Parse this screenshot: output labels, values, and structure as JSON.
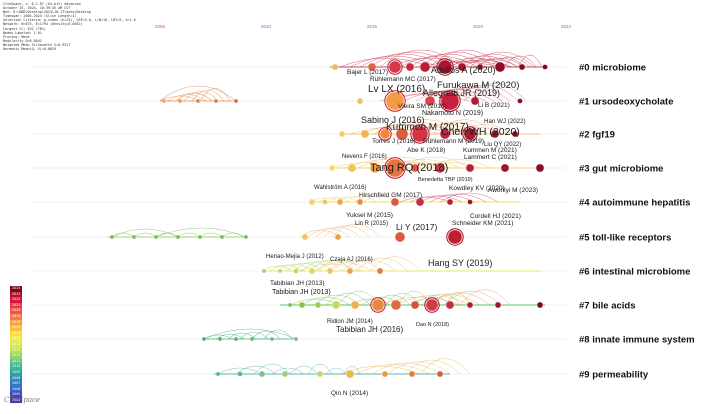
{
  "metadata_lines": [
    "CiteSpace, v. 6.2.R7 (64-bit) Advanced",
    "October 25, 2024, 10:39:45 AM CST",
    "WoS: D:\\BDD\\Desktop\\2024\\10.17\\data\\Desktop",
    "Timespan: 2004-2024 (Slice Length=1)",
    "Selection Criteria: g-index (k=25), LRF=3.0, L/N=10, LBY=5, e=1.0",
    "Network: N=675, E=1794 (Density=0.0052)",
    "Largest CC: 532 (78%)",
    "Nodes Labeled: 1.0%",
    "Pruning: None",
    "Modularity Q=0.8042",
    "Weighted Mean Silhouette S=0.9317",
    "Harmonic Mean(Q, S)=0.8629"
  ],
  "timeline_years": [
    "2005",
    "2010",
    "2015",
    "2020",
    "2024"
  ],
  "timeline_colors": [
    "#d63cd6",
    "#c23be0",
    "#c83fd0",
    "#cc44cc",
    "#c23be0"
  ],
  "clusters": [
    {
      "label": "#0 microbiome"
    },
    {
      "label": "#1 ursodeoxycholate"
    },
    {
      "label": "#2 fgf19"
    },
    {
      "label": "#3 gut microbiome"
    },
    {
      "label": "#4 autoimmune hepatitis"
    },
    {
      "label": "#5 toll-like receptors"
    },
    {
      "label": "#6 intestinal microbiome"
    },
    {
      "label": "#7 bile acids"
    },
    {
      "label": "#8 innate immune system"
    },
    {
      "label": "#9 permeability"
    }
  ],
  "references": [
    {
      "label": "Bajer L (2017)"
    },
    {
      "label": "Albillos A (2020)"
    },
    {
      "label": "Rühlemann MC (2017)"
    },
    {
      "label": "Furukawa M (2020)"
    },
    {
      "label": "Lv LX (2016)"
    },
    {
      "label": "Allegretti JR (2019)"
    },
    {
      "label": "Vieira SM (2018)"
    },
    {
      "label": "Li B (2021)"
    },
    {
      "label": "Nakamoto N (2019)"
    },
    {
      "label": "Han WJ (2022)"
    },
    {
      "label": "Sabino J (2016)"
    },
    {
      "label": "Kummen M (2017)"
    },
    {
      "label": "Chen WH (2020)"
    },
    {
      "label": "Torres J (2016)"
    },
    {
      "label": "Rühlemann M (2019)"
    },
    {
      "label": "Liu QY (2022)"
    },
    {
      "label": "Abe K (2018)"
    },
    {
      "label": "Kummen M (2021)"
    },
    {
      "label": "Nevens F (2016)"
    },
    {
      "label": "Lammert C (2021)"
    },
    {
      "label": "Tang RQ (2018)"
    },
    {
      "label": "Benedetta TBP (2019)"
    },
    {
      "label": "Kowdley KV (2020)"
    },
    {
      "label": "Awoniyi M (2023)"
    },
    {
      "label": "Wahlström A (2016)"
    },
    {
      "label": "Hirschfield GM (2017)"
    },
    {
      "label": "Yuksel M (2015)"
    },
    {
      "label": "Cordell HJ (2021)"
    },
    {
      "label": "Lin R (2015)"
    },
    {
      "label": "Schneider KM (2021)"
    },
    {
      "label": "Li Y (2017)"
    },
    {
      "label": "Henao-Mejia J (2012)"
    },
    {
      "label": "Czaja AJ (2016)"
    },
    {
      "label": "Hang SY (2019)"
    },
    {
      "label": "Tabibian JH (2013)"
    },
    {
      "label": "Tabibian JH (2013)"
    },
    {
      "label": "Ridlon JM (2014)"
    },
    {
      "label": "Tabibian JH (2016)"
    },
    {
      "label": "Dao N (2018)"
    },
    {
      "label": "Qin N (2014)"
    }
  ],
  "legend_years": [
    "2024",
    "2023",
    "2022",
    "2021",
    "2020",
    "2019",
    "2018",
    "2017",
    "2016",
    "2015",
    "2014",
    "2013",
    "2012",
    "2011",
    "2010",
    "2009",
    "2008",
    "2007",
    "2006",
    "2005",
    "2004"
  ],
  "legend_colors": [
    "#7a0a1a",
    "#b3102b",
    "#d4173a",
    "#e8364a",
    "#f0554a",
    "#f57a45",
    "#f89c40",
    "#fbbd3c",
    "#fcd83f",
    "#f1e946",
    "#d7e94d",
    "#b5e05a",
    "#8dd46d",
    "#63c47f",
    "#3cb592",
    "#2aa3a5",
    "#2a8db8",
    "#3275c6",
    "#3a5dc9",
    "#3e45b8",
    "#3a2f9e"
  ],
  "logo_text": "CiteSpace"
}
